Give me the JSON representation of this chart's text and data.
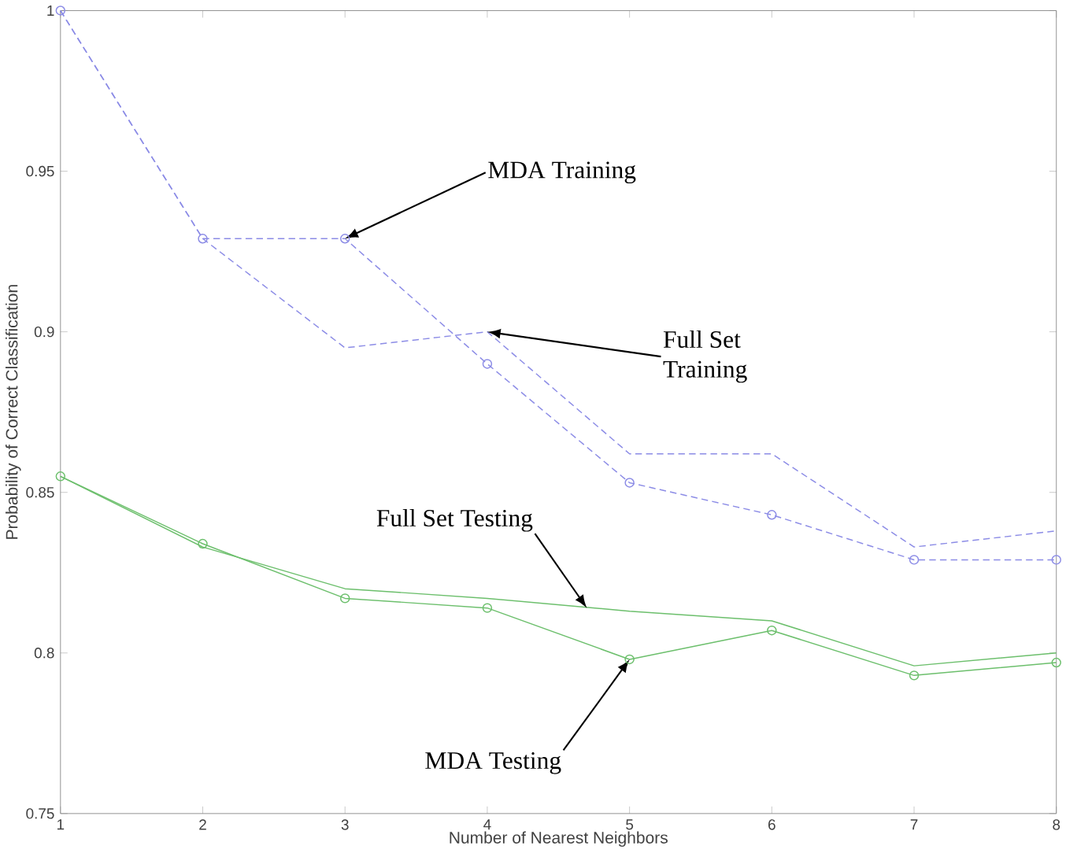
{
  "chart_data": {
    "type": "line",
    "xlabel": "Number of Nearest Neighbors",
    "ylabel": "Probability of Correct Classification",
    "x": [
      1,
      2,
      3,
      4,
      5,
      6,
      7,
      8
    ],
    "series": [
      {
        "color": "#8c8ce6",
        "line_style": "dashed",
        "marker": "circle",
        "values": [
          1.0,
          0.929,
          0.929,
          0.89,
          0.853,
          0.843,
          0.829,
          0.829
        ]
      },
      {
        "color": "#8c8ce6",
        "line_style": "dashed",
        "marker": "none",
        "values": [
          1.0,
          0.929,
          0.895,
          0.9,
          0.862,
          0.862,
          0.833,
          0.838
        ]
      },
      {
        "color": "#6cbf6c",
        "line_style": "solid",
        "marker": "none",
        "values": [
          0.855,
          0.833,
          0.82,
          0.817,
          0.813,
          0.81,
          0.796,
          0.8
        ]
      },
      {
        "color": "#6cbf6c",
        "line_style": "solid",
        "marker": "circle",
        "values": [
          0.855,
          0.834,
          0.817,
          0.814,
          0.798,
          0.807,
          0.793,
          0.797
        ]
      }
    ],
    "annotations": [
      {
        "text": "MDA Training",
        "x": 3,
        "y": 0.929
      },
      {
        "text": "Full Set Training",
        "x": 4,
        "y": 0.9
      },
      {
        "text": "Full Set Testing",
        "x": 4.7,
        "y": 0.814
      },
      {
        "text": "MDA Testing",
        "x": 5,
        "y": 0.798
      }
    ],
    "xlim": [
      1,
      8
    ],
    "xticks": [
      1,
      2,
      3,
      4,
      5,
      6,
      7,
      8
    ],
    "ylim": [
      0.75,
      1
    ],
    "yticks": [
      0.75,
      0.8,
      0.85,
      0.9,
      0.95,
      1
    ]
  }
}
